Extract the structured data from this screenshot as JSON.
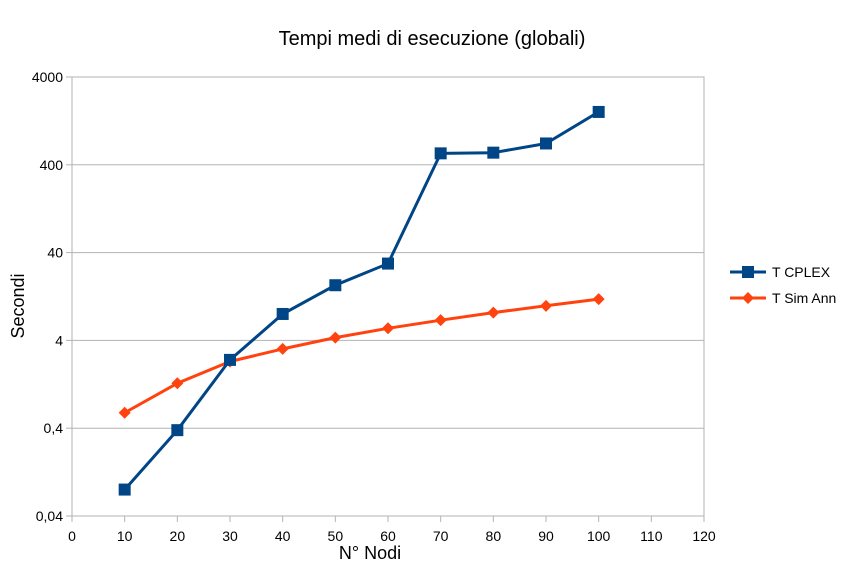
{
  "chart_data": {
    "type": "line",
    "title": "Tempi medi di esecuzione (globali)",
    "xlabel": "N° Nodi",
    "ylabel": "Secondi",
    "y_scale": "log",
    "xlim": [
      0,
      120
    ],
    "x_ticks": [
      0,
      10,
      20,
      30,
      40,
      50,
      60,
      70,
      80,
      90,
      100,
      110,
      120
    ],
    "ylim": [
      0.04,
      4000
    ],
    "y_ticks": [
      0.04,
      0.4,
      4,
      40,
      400,
      4000
    ],
    "y_tick_labels": [
      "0,04",
      "0,4",
      "4",
      "40",
      "400",
      "4000"
    ],
    "grid": "horizontal",
    "legend_position": "right",
    "series": [
      {
        "name": "T CPLEX",
        "color": "#004586",
        "marker": "square",
        "x": [
          10,
          20,
          30,
          40,
          50,
          60,
          70,
          80,
          90,
          100
        ],
        "values": [
          0.08,
          0.38,
          2.4,
          8,
          17,
          30,
          540,
          550,
          700,
          1600
        ]
      },
      {
        "name": "T Sim Ann",
        "color": "#ff420e",
        "marker": "diamond",
        "x": [
          10,
          20,
          30,
          40,
          50,
          60,
          70,
          80,
          90,
          100
        ],
        "values": [
          0.6,
          1.3,
          2.3,
          3.2,
          4.3,
          5.5,
          6.8,
          8.3,
          9.9,
          11.8
        ]
      }
    ]
  }
}
